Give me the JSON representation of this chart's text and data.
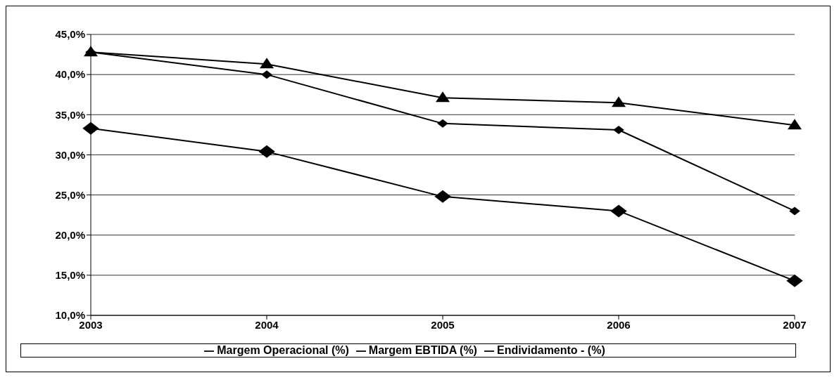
{
  "chart_data": {
    "type": "line",
    "categories": [
      "2003",
      "2004",
      "2005",
      "2006",
      "2007"
    ],
    "series": [
      {
        "name": "Margem Operacional (%)",
        "color": "#000000",
        "marker": "diamond",
        "values": [
          33.3,
          30.4,
          24.8,
          23.0,
          14.3
        ]
      },
      {
        "name": "Margem EBTIDA (%)",
        "color": "#000000",
        "marker": "diamond",
        "values": [
          42.8,
          40.0,
          33.9,
          33.1,
          23.0
        ]
      },
      {
        "name": "Endividamento - (%)",
        "color": "#000000",
        "marker": "triangle",
        "values": [
          42.8,
          41.3,
          37.1,
          36.5,
          33.7
        ]
      }
    ],
    "ylim": [
      10,
      45
    ],
    "yticks": [
      {
        "value": 10,
        "label": "10,0%"
      },
      {
        "value": 15,
        "label": "15,0%"
      },
      {
        "value": 20,
        "label": "20,0%"
      },
      {
        "value": 25,
        "label": "25,0%"
      },
      {
        "value": 30,
        "label": "30,0%"
      },
      {
        "value": 35,
        "label": "35,0%"
      },
      {
        "value": 40,
        "label": "40,0%"
      },
      {
        "value": 45,
        "label": "45,0%"
      }
    ],
    "grid": "y",
    "legend": "bottom",
    "line_style": "solid"
  }
}
